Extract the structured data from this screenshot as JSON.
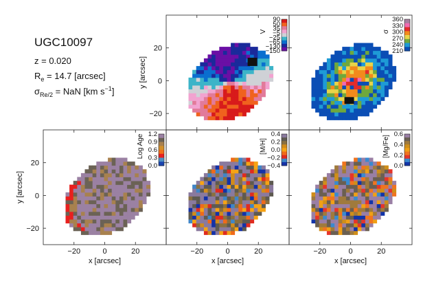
{
  "galaxy": {
    "name": "UGC10097",
    "redshift_text": "z = 0.020",
    "reff_label": "R",
    "reff_sub": "e",
    "reff_value": " = 14.7 [arcsec]",
    "sigma_label": "σ",
    "sigma_sub": "Re/2",
    "sigma_value": " = NaN [km s",
    "sigma_exp": "−1",
    "sigma_close": "]"
  },
  "chart_data": [
    {
      "type": "heatmap",
      "quantity": "velocity",
      "colorbar_label": "V",
      "colorbar_ticks": [
        "90",
        "50",
        "35",
        "−5",
        "−25",
        "−65",
        "−130",
        "−150"
      ],
      "colorbar_range": [
        -150,
        90
      ],
      "xlabel": "",
      "ylabel": "y [arcsec]",
      "xlim": [
        -40,
        40
      ],
      "ylim": [
        -30,
        40
      ],
      "xticks": [],
      "yticks": [
        "20",
        "0",
        "−20"
      ]
    },
    {
      "type": "heatmap",
      "quantity": "dispersion",
      "colorbar_label": "σ",
      "colorbar_ticks": [
        "360",
        "330",
        "300",
        "270",
        "240",
        "210"
      ],
      "colorbar_range": [
        200,
        365
      ],
      "xlabel": "",
      "ylabel": "",
      "xlim": [
        -40,
        40
      ],
      "ylim": [
        -30,
        40
      ],
      "xticks": [],
      "yticks": []
    },
    {
      "type": "heatmap",
      "quantity": "log_age",
      "colorbar_label": "Log Age",
      "colorbar_ticks": [
        "1.2",
        "0.9",
        "0.6",
        "0.3",
        "0.0"
      ],
      "colorbar_range": [
        0.0,
        1.25
      ],
      "xlabel": "x [arcsec]",
      "ylabel": "y [arcsec]",
      "xlim": [
        -40,
        40
      ],
      "ylim": [
        -30,
        40
      ],
      "xticks": [
        "−20",
        "0",
        "20"
      ],
      "yticks": [
        "20",
        "0",
        "−20"
      ]
    },
    {
      "type": "heatmap",
      "quantity": "metallicity",
      "colorbar_label": "[M/H]",
      "colorbar_ticks": [
        "0.4",
        "0.2",
        "0.0",
        "−0.2",
        "−0.4"
      ],
      "colorbar_range": [
        -0.45,
        0.45
      ],
      "xlabel": "x [arcsec]",
      "ylabel": "",
      "xlim": [
        -40,
        40
      ],
      "ylim": [
        -30,
        40
      ],
      "xticks": [
        "−20",
        "0",
        "20"
      ],
      "yticks": []
    },
    {
      "type": "heatmap",
      "quantity": "alpha_enhancement",
      "colorbar_label": "[Mg/Fe]",
      "colorbar_ticks": [
        "0.6",
        "0.4",
        "0.2",
        "0.0"
      ],
      "colorbar_range": [
        -0.05,
        0.65
      ],
      "xlabel": "x [arcsec]",
      "ylabel": "",
      "xlim": [
        -40,
        40
      ],
      "ylim": [
        -30,
        40
      ],
      "xticks": [
        "−20",
        "0",
        "20"
      ],
      "yticks": []
    }
  ]
}
